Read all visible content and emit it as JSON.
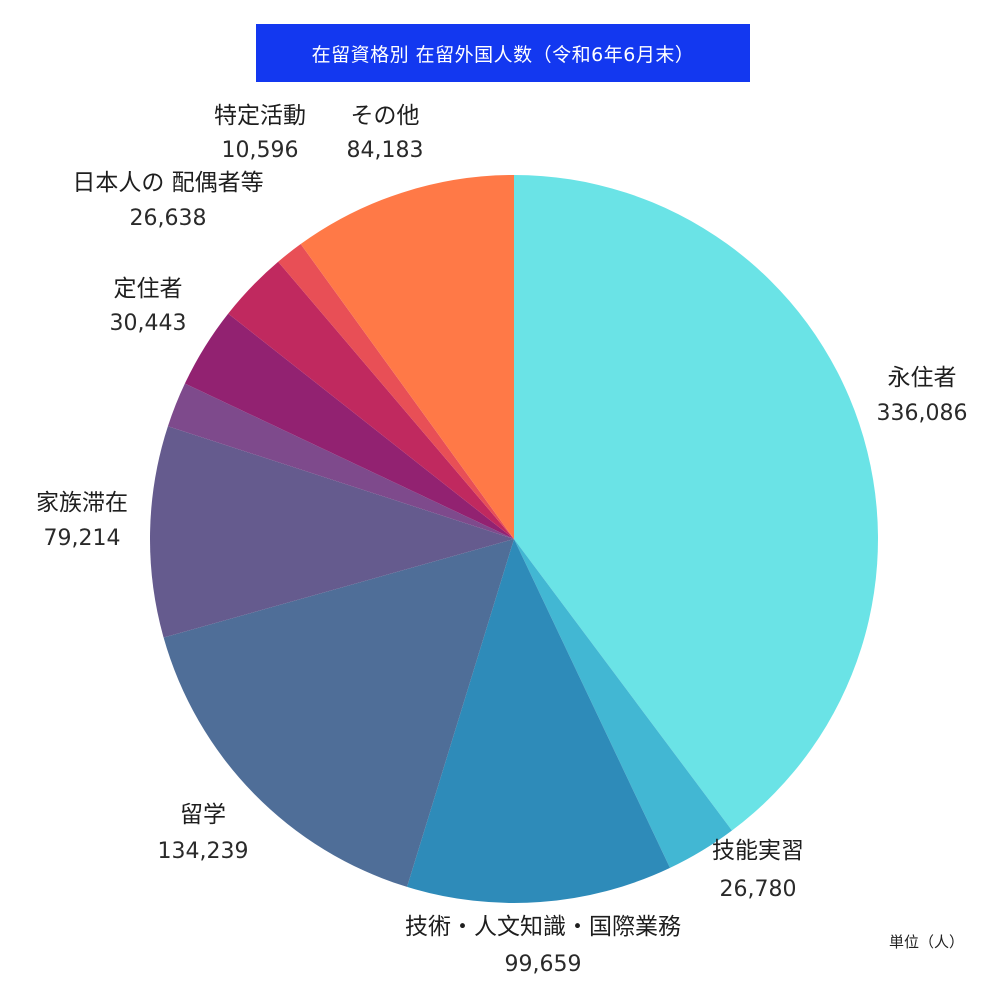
{
  "chart_data": {
    "type": "pie",
    "title": "在留資格別 在留外国人数（令和6年6月末）",
    "unit_note": "単位（人）",
    "start_angle_deg": 0,
    "direction": "clockwise",
    "slices": [
      {
        "label": "永住者",
        "value": 336086,
        "value_label": "336,086",
        "color": "#6ae3e6"
      },
      {
        "label": "技能実習",
        "value": 26780,
        "value_label": "26,780",
        "color": "#42b7d3"
      },
      {
        "label": "技術・人文知識・国際業務",
        "value": 99659,
        "value_label": "99,659",
        "color": "#2e8bb9"
      },
      {
        "label": "留学",
        "value": 134239,
        "value_label": "134,239",
        "color": "#4f6e98"
      },
      {
        "label": "家族滞在",
        "value": 79214,
        "value_label": "79,214",
        "color": "#655b8e"
      },
      {
        "label": "",
        "value": 17000,
        "value_label": "",
        "color": "#7e4a8c"
      },
      {
        "label": "定住者",
        "value": 30443,
        "value_label": "30,443",
        "color": "#922271"
      },
      {
        "label": "日本人の 配偶者等",
        "value": 26638,
        "value_label": "26,638",
        "color": "#c0295f"
      },
      {
        "label": "特定活動",
        "value": 10596,
        "value_label": "10,596",
        "color": "#e84f56"
      },
      {
        "label": "その他",
        "value": 84183,
        "value_label": "84,183",
        "color": "#ff7947"
      }
    ]
  }
}
